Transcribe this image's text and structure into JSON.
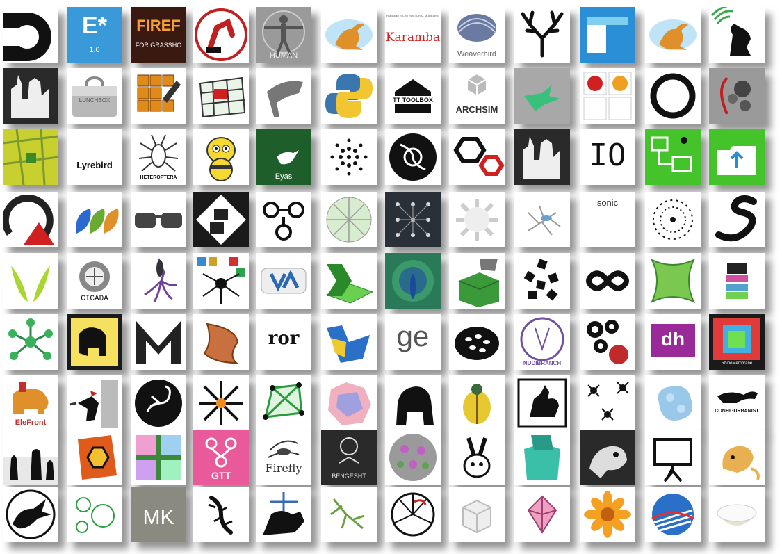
{
  "rows": [
    [
      {
        "name": "d-logo-icon",
        "bg": "#ffffff",
        "label": ""
      },
      {
        "name": "e-star-icon",
        "bg": "#3a9ad9",
        "label": "E*",
        "sub": "1.0"
      },
      {
        "name": "firefly-grasshopper-icon",
        "bg": "#3a1a10",
        "label": "FIREF",
        "sub": "FOR GRASSHO"
      },
      {
        "name": "robot-arm-icon",
        "bg": "#ffffff",
        "label": ""
      },
      {
        "name": "human-vitruvian-icon",
        "bg": "#9a9a9a",
        "label": "HUMAN"
      },
      {
        "name": "kangaroo-icon",
        "bg": "#ffffff",
        "label": ""
      },
      {
        "name": "karamba-icon",
        "bg": "#ffffff",
        "label": "Karamba",
        "sub": "PARAMETRIC STRUCTURAL MODELING"
      },
      {
        "name": "weaverbird-icon",
        "bg": "#ffffff",
        "label": "Weaverbird"
      },
      {
        "name": "antlers-icon",
        "bg": "#ffffff",
        "label": ""
      },
      {
        "name": "blue-box-icon",
        "bg": "#2a8fd6",
        "label": ""
      },
      {
        "name": "kangaroo-2-icon",
        "bg": "#ffffff",
        "label": ""
      },
      {
        "name": "howling-wolf-icon",
        "bg": "#ffffff",
        "label": ""
      }
    ],
    [
      {
        "name": "gothic-figure-icon",
        "bg": "#2a2a2a",
        "label": ""
      },
      {
        "name": "lunchbox-icon",
        "bg": "#ffffff",
        "label": "LUNCHBOX"
      },
      {
        "name": "pencil-grid-icon",
        "bg": "#ffffff",
        "label": ""
      },
      {
        "name": "mesh-grid-icon",
        "bg": "#ffffff",
        "label": ""
      },
      {
        "name": "chair-icon",
        "bg": "#ffffff",
        "label": ""
      },
      {
        "name": "python-icon",
        "bg": "#ffffff",
        "label": ""
      },
      {
        "name": "tt-toolbox-icon",
        "bg": "#ffffff",
        "label": "TT TOOLBOX"
      },
      {
        "name": "archsim-icon",
        "bg": "#ffffff",
        "label": "ARCHSIM"
      },
      {
        "name": "hummingbird-icon",
        "bg": "#a8a8a8",
        "label": ""
      },
      {
        "name": "ladybug-honeybee-icon",
        "bg": "#ffffff",
        "label": ""
      },
      {
        "name": "ring-icon",
        "bg": "#ffffff",
        "label": ""
      },
      {
        "name": "spheres-icon",
        "bg": "#9a9a9a",
        "label": ""
      }
    ],
    [
      {
        "name": "map-icon",
        "bg": "#c8d030",
        "label": ""
      },
      {
        "name": "lyrebird-icon",
        "bg": "#ffffff",
        "label": "Lyrebird"
      },
      {
        "name": "heteroptera-icon",
        "bg": "#ffffff",
        "label": "HETEROPTERA"
      },
      {
        "name": "bee-icon",
        "bg": "#ffffff",
        "label": ""
      },
      {
        "name": "eyas-icon",
        "bg": "#1e5e2a",
        "label": "Eyas"
      },
      {
        "name": "dot-spiral-icon",
        "bg": "#ffffff",
        "label": ""
      },
      {
        "name": "w-circle-icon",
        "bg": "#ffffff",
        "label": ""
      },
      {
        "name": "hex-nut-icon",
        "bg": "#ffffff",
        "label": ""
      },
      {
        "name": "gothic-figure-2-icon",
        "bg": "#2a2a2a",
        "label": ""
      },
      {
        "name": "io-icon",
        "bg": "#ffffff",
        "label": "IO"
      },
      {
        "name": "green-ant-icon",
        "bg": "#44c42a",
        "label": ""
      },
      {
        "name": "green-folder-icon",
        "bg": "#44c42a",
        "label": ""
      }
    ],
    [
      {
        "name": "arc-triangle-icon",
        "bg": "#ffffff",
        "label": ""
      },
      {
        "name": "leaves-icon",
        "bg": "#ffffff",
        "label": ""
      },
      {
        "name": "glasses-icon",
        "bg": "#ffffff",
        "label": ""
      },
      {
        "name": "cubes-face-icon",
        "bg": "#1a1a1a",
        "label": ""
      },
      {
        "name": "node-arrows-icon",
        "bg": "#ffffff",
        "label": ""
      },
      {
        "name": "voronoi-circle-icon",
        "bg": "#ffffff",
        "label": ""
      },
      {
        "name": "dot-lattice-icon",
        "bg": "#2a3038",
        "label": ""
      },
      {
        "name": "spiky-sphere-icon",
        "bg": "#ffffff",
        "label": ""
      },
      {
        "name": "mosquito-icon",
        "bg": "#ffffff",
        "label": ""
      },
      {
        "name": "sonic-icon",
        "bg": "#ffffff",
        "label": "sonic"
      },
      {
        "name": "dotted-ring-icon",
        "bg": "#ffffff",
        "label": ""
      },
      {
        "name": "snake-icon",
        "bg": "#ffffff",
        "label": ""
      }
    ],
    [
      {
        "name": "green-v-icon",
        "bg": "#ffffff",
        "label": ""
      },
      {
        "name": "cicada-icon",
        "bg": "#ffffff",
        "label": "CICADA"
      },
      {
        "name": "squid-icon",
        "bg": "#ffffff",
        "label": ""
      },
      {
        "name": "spider-collage-icon",
        "bg": "#ffffff",
        "label": ""
      },
      {
        "name": "va-node-icon",
        "bg": "#ffffff",
        "label": ""
      },
      {
        "name": "excel-grid-icon",
        "bg": "#ffffff",
        "label": ""
      },
      {
        "name": "peacock-icon",
        "bg": "#2a7a5a",
        "label": ""
      },
      {
        "name": "hand-box-icon",
        "bg": "#ffffff",
        "label": ""
      },
      {
        "name": "black-cubes-icon",
        "bg": "#ffffff",
        "label": ""
      },
      {
        "name": "infinity-icon",
        "bg": "#ffffff",
        "label": ""
      },
      {
        "name": "green-membrane-icon",
        "bg": "#ffffff",
        "label": ""
      },
      {
        "name": "robot-bug-icon",
        "bg": "#ffffff",
        "label": ""
      }
    ],
    [
      {
        "name": "network-hub-icon",
        "bg": "#ffffff",
        "label": ""
      },
      {
        "name": "elephant-icon",
        "bg": "#1a1a1a",
        "label": ""
      },
      {
        "name": "m-letter-icon",
        "bg": "#ffffff",
        "label": ""
      },
      {
        "name": "twisted-surface-icon",
        "bg": "#ffffff",
        "label": ""
      },
      {
        "name": "ror-icon",
        "bg": "#ffffff",
        "label": "ror"
      },
      {
        "name": "blue-yellow-shape-icon",
        "bg": "#ffffff",
        "label": ""
      },
      {
        "name": "ge-icon",
        "bg": "#ffffff",
        "label": "ge"
      },
      {
        "name": "shell-icon",
        "bg": "#ffffff",
        "label": ""
      },
      {
        "name": "nudibranch-icon",
        "bg": "#ffffff",
        "label": "NUDIBRANCH"
      },
      {
        "name": "cells-e-icon",
        "bg": "#ffffff",
        "label": ""
      },
      {
        "name": "dh-icon",
        "bg": "#ffffff",
        "label": "dh"
      },
      {
        "name": "rhino-membrane-icon",
        "bg": "#1a1a1a",
        "label": "RhinoMembrane"
      }
    ],
    [
      {
        "name": "elefront-icon",
        "bg": "#ffffff",
        "label": "EleFront"
      },
      {
        "name": "woodpecker-icon",
        "bg": "#ffffff",
        "label": ""
      },
      {
        "name": "scorpion-icon",
        "bg": "#ffffff",
        "label": ""
      },
      {
        "name": "burst-arrows-icon",
        "bg": "#ffffff",
        "label": ""
      },
      {
        "name": "green-graph-icon",
        "bg": "#ffffff",
        "label": ""
      },
      {
        "name": "pink-blob-icon",
        "bg": "#ffffff",
        "label": ""
      },
      {
        "name": "gorilla-icon",
        "bg": "#ffffff",
        "label": ""
      },
      {
        "name": "beetle-icon",
        "bg": "#ffffff",
        "label": ""
      },
      {
        "name": "rooster-icon",
        "bg": "#ffffff",
        "label": ""
      },
      {
        "name": "ants-icon",
        "bg": "#ffffff",
        "label": ""
      },
      {
        "name": "blue-blob-icon",
        "bg": "#ffffff",
        "label": ""
      },
      {
        "name": "configurbanist-icon",
        "bg": "#ffffff",
        "label": "CONFIGURBANIST"
      }
    ],
    [
      {
        "name": "silhouettes-icon",
        "bg": "#ffffff",
        "label": ""
      },
      {
        "name": "hex-tile-icon",
        "bg": "#ffffff",
        "label": ""
      },
      {
        "name": "color-cross-icon",
        "bg": "#ffffff",
        "label": ""
      },
      {
        "name": "gtt-icon",
        "bg": "#e85a9a",
        "label": "GTT"
      },
      {
        "name": "firefly-icon",
        "bg": "#ffffff",
        "label": "Firefly"
      },
      {
        "name": "bengesht-icon",
        "bg": "#2a2a2a",
        "label": "BENGESHT"
      },
      {
        "name": "geodesic-sphere-icon",
        "bg": "#ffffff",
        "label": ""
      },
      {
        "name": "rabbit-icon",
        "bg": "#ffffff",
        "label": ""
      },
      {
        "name": "teal-box-icon",
        "bg": "#ffffff",
        "label": ""
      },
      {
        "name": "chameleon-icon",
        "bg": "#2a2a2a",
        "label": ""
      },
      {
        "name": "presentation-icon",
        "bg": "#ffffff",
        "label": ""
      },
      {
        "name": "monkey-icon",
        "bg": "#ffffff",
        "label": ""
      }
    ],
    [
      {
        "name": "dragon-icon",
        "bg": "#ffffff",
        "label": ""
      },
      {
        "name": "green-circles-icon",
        "bg": "#ffffff",
        "label": ""
      },
      {
        "name": "mk-icon",
        "bg": "#8a8a80",
        "label": "MK"
      },
      {
        "name": "gecko-icon",
        "bg": "#ffffff",
        "label": ""
      },
      {
        "name": "rhino-bridge-icon",
        "bg": "#ffffff",
        "label": ""
      },
      {
        "name": "mantis-icon",
        "bg": "#ffffff",
        "label": ""
      },
      {
        "name": "wheel-icon",
        "bg": "#ffffff",
        "label": ""
      },
      {
        "name": "white-cubes-icon",
        "bg": "#ffffff",
        "label": ""
      },
      {
        "name": "pink-origami-icon",
        "bg": "#ffffff",
        "label": ""
      },
      {
        "name": "orange-flower-icon",
        "bg": "#ffffff",
        "label": ""
      },
      {
        "name": "sunrise-icon",
        "bg": "#ffffff",
        "label": ""
      },
      {
        "name": "rice-bowl-icon",
        "bg": "#ffffff",
        "label": ""
      }
    ]
  ]
}
